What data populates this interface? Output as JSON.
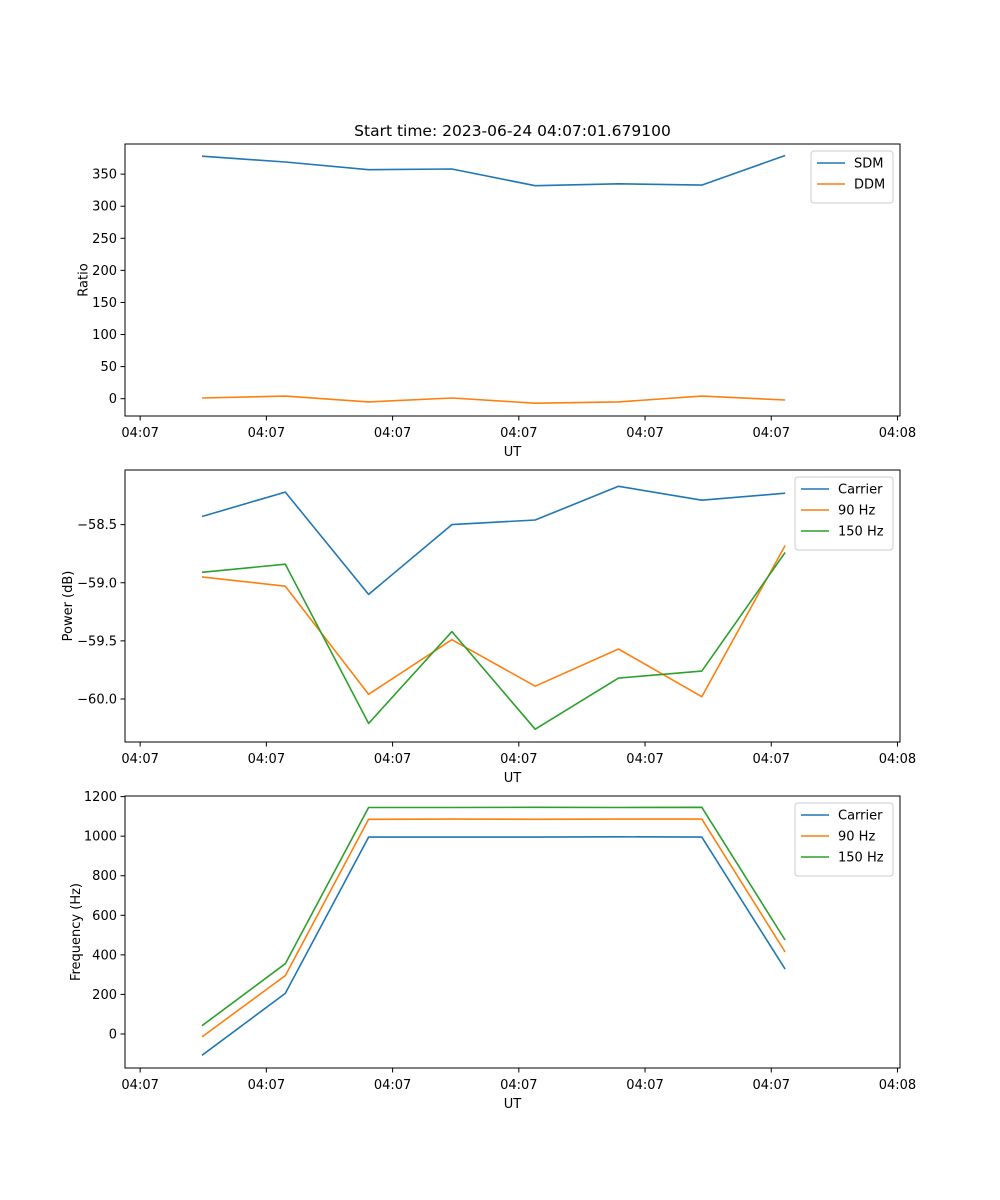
{
  "figure": {
    "title": "Start time: 2023-06-24 04:07:01.679100"
  },
  "colors": {
    "blue": "#1f77b4",
    "orange": "#ff7f0e",
    "green": "#2ca02c"
  },
  "chart_data": [
    {
      "type": "line",
      "title": "Start time: 2023-06-24 04:07:01.679100",
      "xlabel": "UT",
      "ylabel": "Ratio",
      "x_ticks": [
        "04:07",
        "04:07",
        "04:07",
        "04:07",
        "04:07",
        "04:07",
        "04:08"
      ],
      "y_ticks": [
        "0",
        "50",
        "100",
        "150",
        "200",
        "250",
        "300",
        "350"
      ],
      "x_tick_values": [
        0,
        1,
        2,
        3,
        4,
        5,
        6
      ],
      "y_tick_values": [
        0,
        50,
        100,
        150,
        200,
        250,
        300,
        350
      ],
      "xlim": [
        -0.12,
        6.02
      ],
      "ylim": [
        -27,
        397
      ],
      "x": [
        0.49,
        1.15,
        1.81,
        2.47,
        3.13,
        3.79,
        4.45,
        5.11
      ],
      "series": [
        {
          "name": "SDM",
          "color": "#1f77b4",
          "values": [
            378,
            369,
            357,
            358,
            332,
            335,
            333,
            379
          ]
        },
        {
          "name": "DDM",
          "color": "#ff7f0e",
          "values": [
            1,
            4,
            -5,
            1,
            -7,
            -5,
            4,
            -2
          ]
        }
      ],
      "legend": "top-right",
      "grid": false
    },
    {
      "type": "line",
      "xlabel": "UT",
      "ylabel": "Power (dB)",
      "x_ticks": [
        "04:07",
        "04:07",
        "04:07",
        "04:07",
        "04:07",
        "04:07",
        "04:08"
      ],
      "y_ticks": [
        "−60.0",
        "−59.5",
        "−59.0",
        "−58.5"
      ],
      "x_tick_values": [
        0,
        1,
        2,
        3,
        4,
        5,
        6
      ],
      "y_tick_values": [
        -60.0,
        -59.5,
        -59.0,
        -58.5
      ],
      "xlim": [
        -0.12,
        6.02
      ],
      "ylim": [
        -60.37,
        -58.03
      ],
      "x": [
        0.49,
        1.15,
        1.81,
        2.47,
        3.13,
        3.79,
        4.45,
        5.11
      ],
      "series": [
        {
          "name": "Carrier",
          "color": "#1f77b4",
          "values": [
            -58.43,
            -58.22,
            -59.1,
            -58.5,
            -58.46,
            -58.17,
            -58.29,
            -58.23
          ]
        },
        {
          "name": "90 Hz",
          "color": "#ff7f0e",
          "values": [
            -58.95,
            -59.03,
            -59.96,
            -59.49,
            -59.89,
            -59.57,
            -59.98,
            -58.68
          ]
        },
        {
          "name": "150 Hz",
          "color": "#2ca02c",
          "values": [
            -58.91,
            -58.84,
            -60.21,
            -59.42,
            -60.26,
            -59.82,
            -59.76,
            -58.74
          ]
        }
      ],
      "legend": "top-right",
      "grid": false
    },
    {
      "type": "line",
      "xlabel": "UT",
      "ylabel": "Frequency (Hz)",
      "x_ticks": [
        "04:07",
        "04:07",
        "04:07",
        "04:07",
        "04:07",
        "04:07",
        "04:08"
      ],
      "y_ticks": [
        "0",
        "200",
        "400",
        "600",
        "800",
        "1000",
        "1200"
      ],
      "x_tick_values": [
        0,
        1,
        2,
        3,
        4,
        5,
        6
      ],
      "y_tick_values": [
        0,
        200,
        400,
        600,
        800,
        1000,
        1200
      ],
      "xlim": [
        -0.12,
        6.02
      ],
      "ylim": [
        -172,
        1203
      ],
      "x": [
        0.49,
        1.15,
        1.81,
        2.47,
        3.13,
        3.79,
        4.45,
        5.11
      ],
      "series": [
        {
          "name": "Carrier",
          "color": "#1f77b4",
          "values": [
            -108,
            205,
            995,
            995,
            995,
            997,
            995,
            328
          ]
        },
        {
          "name": "90 Hz",
          "color": "#ff7f0e",
          "values": [
            -15,
            295,
            1085,
            1086,
            1085,
            1086,
            1086,
            415
          ]
        },
        {
          "name": "150 Hz",
          "color": "#2ca02c",
          "values": [
            42,
            355,
            1145,
            1145,
            1146,
            1145,
            1146,
            475
          ]
        }
      ],
      "legend": "top-right",
      "grid": false
    }
  ]
}
